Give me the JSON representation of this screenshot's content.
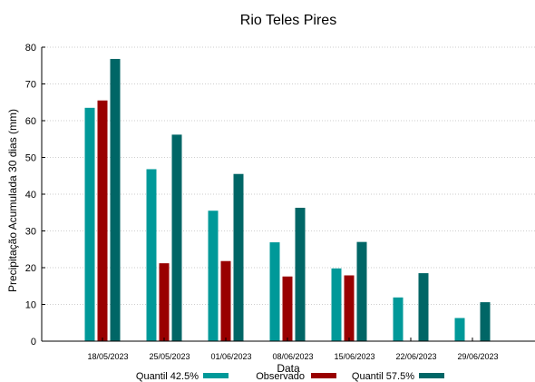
{
  "chart_data": {
    "type": "bar",
    "title": "Rio Teles Pires",
    "xlabel": "Data",
    "ylabel": "Precipitação Acumulada 30 dias (mm)",
    "ylim": [
      0,
      80
    ],
    "yticks": [
      "0",
      "10",
      "20",
      "30",
      "40",
      "50",
      "60",
      "70",
      "80"
    ],
    "grid": true,
    "legend": "bottom",
    "categories": [
      "18/05/2023",
      "25/05/2023",
      "01/06/2023",
      "08/06/2023",
      "15/06/2023",
      "22/06/2023",
      "29/06/2023"
    ],
    "series": [
      {
        "name": "Quantil 42.5%",
        "color": "#009999",
        "values": [
          63.5,
          46.8,
          35.5,
          26.9,
          19.8,
          11.9,
          6.3
        ]
      },
      {
        "name": "Observado",
        "color": "#990000",
        "values": [
          65.5,
          21.2,
          21.8,
          17.6,
          17.9,
          null,
          null
        ]
      },
      {
        "name": "Quantil 57.5%",
        "color": "#006666",
        "values": [
          76.8,
          56.2,
          45.5,
          36.3,
          27.0,
          18.5,
          10.6
        ]
      }
    ]
  }
}
